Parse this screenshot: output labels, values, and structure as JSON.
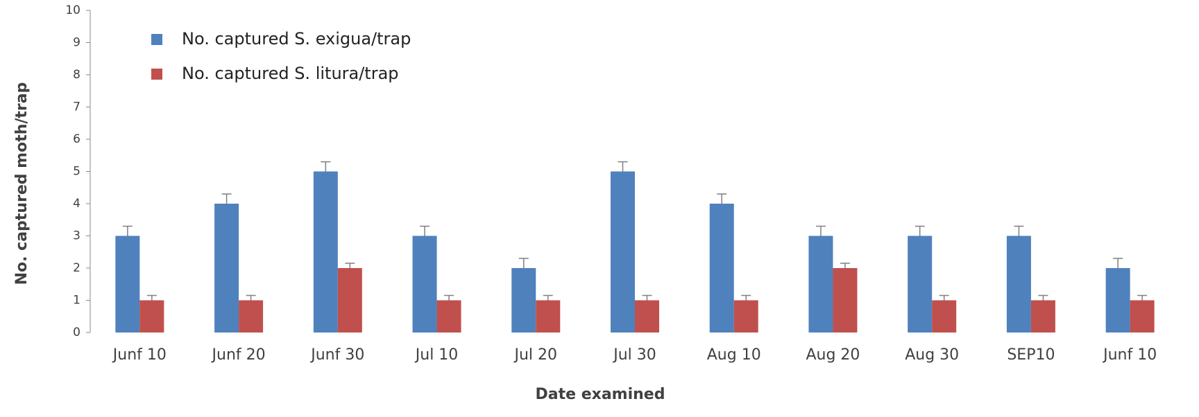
{
  "chart_data": {
    "type": "bar",
    "x_label": "Date examined",
    "y_label": "No. captured moth/trap",
    "categories": [
      "Junf 10",
      "Junf 20",
      "Junf 30",
      "Jul 10",
      "Jul 20",
      "Jul 30",
      "Aug 10",
      "Aug 20",
      "Aug 30",
      "SEP10",
      "Junf 10"
    ],
    "series": [
      {
        "name": "No. captured S. exigua/trap",
        "color": "#4f81bd",
        "values": [
          3,
          4,
          5,
          3,
          2,
          5,
          4,
          3,
          3,
          3,
          2
        ],
        "errors": [
          0.3,
          0.3,
          0.3,
          0.3,
          0.3,
          0.3,
          0.3,
          0.3,
          0.3,
          0.3,
          0.3
        ]
      },
      {
        "name": "No. captured S. litura/trap",
        "color": "#c0504d",
        "values": [
          1,
          1,
          2,
          1,
          1,
          1,
          1,
          2,
          1,
          1,
          1
        ],
        "errors": [
          0.15,
          0.15,
          0.15,
          0.15,
          0.15,
          0.15,
          0.15,
          0.15,
          0.15,
          0.15,
          0.15
        ]
      }
    ],
    "ylim": [
      0,
      10
    ],
    "yticks": [
      0,
      1,
      2,
      3,
      4,
      5,
      6,
      7,
      8,
      9,
      10
    ],
    "error_color": "#7f7f7f",
    "legend": "upper left"
  }
}
